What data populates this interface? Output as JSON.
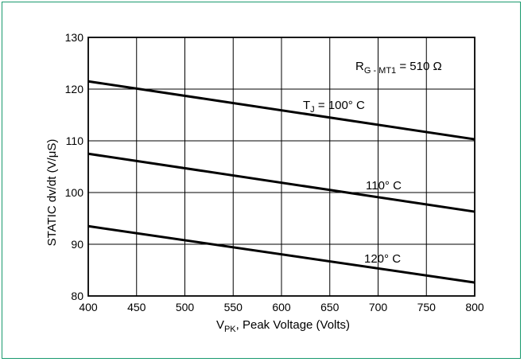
{
  "chart_data": {
    "type": "line",
    "title": "",
    "xlabel": {
      "main": "V",
      "sub": "PK",
      "rest": ", Peak Voltage  (Volts)"
    },
    "ylabel": "STATIC dv/dt (V/μS)",
    "xlim": [
      400,
      800
    ],
    "ylim": [
      80,
      130
    ],
    "x_ticks": [
      "400",
      "450",
      "500",
      "550",
      "600",
      "650",
      "700",
      "750",
      "800"
    ],
    "y_ticks": [
      "80",
      "90",
      "100",
      "110",
      "120",
      "130"
    ],
    "grid": true,
    "series": [
      {
        "name": "T_J = 100° C",
        "x": [
          400,
          800
        ],
        "y": [
          121.5,
          110.3
        ]
      },
      {
        "name": "110° C",
        "x": [
          400,
          800
        ],
        "y": [
          107.5,
          96.3
        ]
      },
      {
        "name": "120° C",
        "x": [
          400,
          800
        ],
        "y": [
          93.5,
          82.6
        ]
      }
    ],
    "annotations": [
      {
        "id": "rg",
        "main": "R",
        "sub": "G - MT1",
        "rest": " = 510 Ω"
      },
      {
        "id": "tj",
        "main": "T",
        "sub": "J",
        "rest": " = 100° C"
      },
      {
        "id": "c110",
        "main": "110° C",
        "sub": "",
        "rest": ""
      },
      {
        "id": "c120",
        "main": "120° C",
        "sub": "",
        "rest": ""
      }
    ]
  }
}
